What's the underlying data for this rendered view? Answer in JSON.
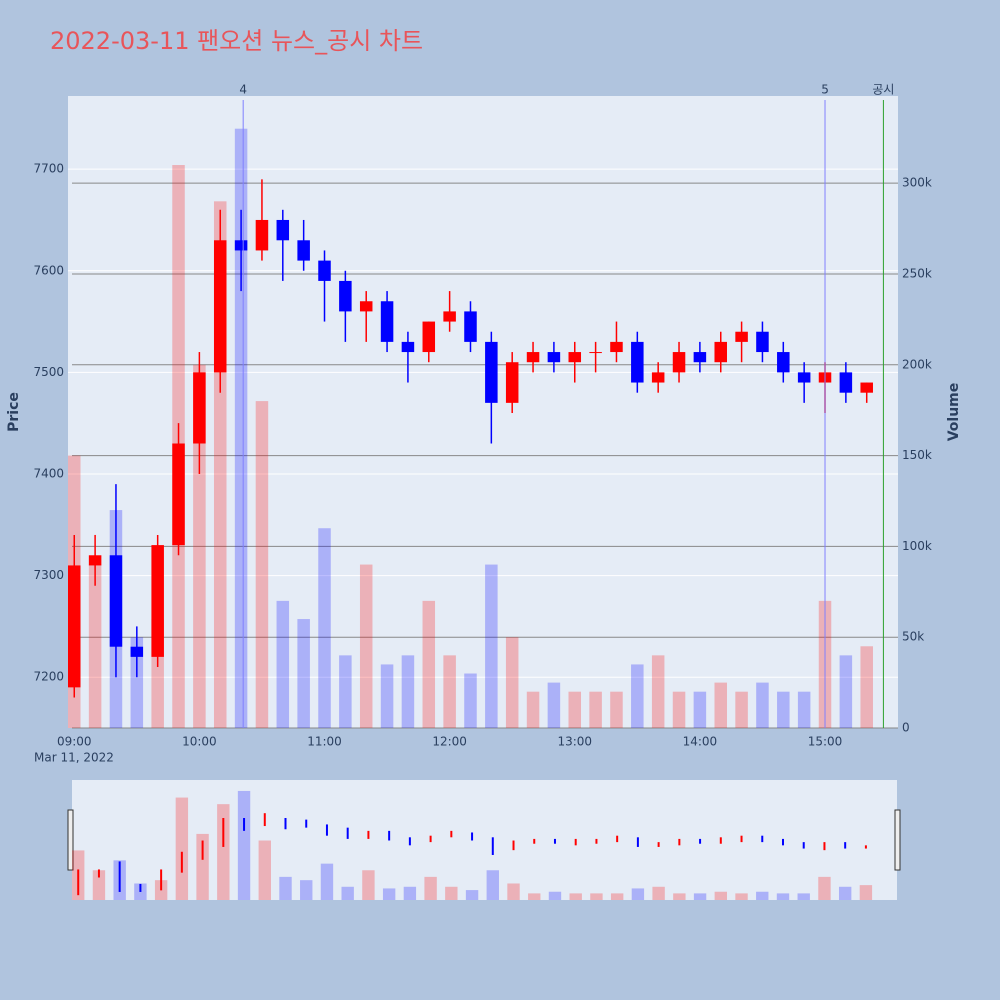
{
  "chart_data": {
    "type": "candlestick",
    "title": "2022-03-11 팬오션 뉴스_공시 차트",
    "y_label": "Price",
    "y2_label": "Volume",
    "x_date_label": "Mar 11, 2022",
    "x": [
      "09:00",
      "09:10",
      "09:20",
      "09:30",
      "09:40",
      "09:50",
      "10:00",
      "10:10",
      "10:20",
      "10:30",
      "10:40",
      "10:50",
      "11:00",
      "11:10",
      "11:20",
      "11:30",
      "11:40",
      "11:50",
      "12:00",
      "12:10",
      "12:20",
      "12:30",
      "12:40",
      "12:50",
      "13:00",
      "13:10",
      "13:20",
      "13:30",
      "13:40",
      "13:50",
      "14:00",
      "14:10",
      "14:20",
      "14:30",
      "14:40",
      "14:50",
      "15:00",
      "15:10",
      "15:20"
    ],
    "open": [
      7190,
      7310,
      7320,
      7230,
      7220,
      7330,
      7430,
      7500,
      7630,
      7620,
      7650,
      7630,
      7610,
      7590,
      7560,
      7570,
      7530,
      7520,
      7550,
      7560,
      7530,
      7470,
      7510,
      7520,
      7510,
      7520,
      7520,
      7530,
      7490,
      7500,
      7520,
      7510,
      7530,
      7540,
      7520,
      7500,
      7490,
      7500,
      7480
    ],
    "high": [
      7340,
      7340,
      7390,
      7250,
      7340,
      7450,
      7520,
      7660,
      7660,
      7690,
      7660,
      7650,
      7620,
      7600,
      7580,
      7580,
      7540,
      7550,
      7580,
      7570,
      7540,
      7520,
      7530,
      7530,
      7530,
      7530,
      7550,
      7540,
      7510,
      7530,
      7530,
      7540,
      7550,
      7550,
      7530,
      7510,
      7510,
      7510,
      7490
    ],
    "low": [
      7180,
      7290,
      7200,
      7200,
      7210,
      7320,
      7400,
      7480,
      7580,
      7610,
      7590,
      7600,
      7550,
      7530,
      7530,
      7520,
      7490,
      7510,
      7540,
      7520,
      7430,
      7460,
      7500,
      7500,
      7490,
      7500,
      7510,
      7480,
      7480,
      7490,
      7500,
      7500,
      7510,
      7510,
      7490,
      7470,
      7460,
      7470,
      7470
    ],
    "close": [
      7310,
      7320,
      7230,
      7220,
      7330,
      7430,
      7500,
      7630,
      7620,
      7650,
      7630,
      7610,
      7590,
      7560,
      7570,
      7530,
      7520,
      7550,
      7560,
      7530,
      7470,
      7510,
      7520,
      7510,
      7520,
      7520,
      7530,
      7490,
      7500,
      7520,
      7510,
      7530,
      7540,
      7520,
      7500,
      7490,
      7500,
      7480,
      7490
    ],
    "volume": [
      150000,
      90000,
      120000,
      50000,
      60000,
      310000,
      200000,
      290000,
      330000,
      180000,
      70000,
      60000,
      110000,
      40000,
      90000,
      35000,
      40000,
      70000,
      40000,
      30000,
      90000,
      50000,
      20000,
      25000,
      20000,
      20000,
      20000,
      35000,
      40000,
      20000,
      20000,
      25000,
      20000,
      25000,
      20000,
      20000,
      70000,
      40000,
      45000
    ],
    "up_color": "#ff0000",
    "down_color": "#0000ff",
    "xlim": [
      "08:57",
      "15:35"
    ],
    "xticks": [
      "09:00",
      "10:00",
      "11:00",
      "12:00",
      "13:00",
      "14:00",
      "15:00"
    ],
    "ylim": [
      7150,
      7772
    ],
    "yticks": [
      7200,
      7300,
      7400,
      7500,
      7600,
      7700
    ],
    "y2lim": [
      0,
      348000
    ],
    "y2ticks": [
      0,
      {
        "value": 50000,
        "label": "50k"
      },
      {
        "value": 100000,
        "label": "100k"
      },
      {
        "value": 150000,
        "label": "150k"
      },
      {
        "value": 200000,
        "label": "200k"
      },
      {
        "value": 250000,
        "label": "250k"
      },
      {
        "value": 300000,
        "label": "300k"
      }
    ],
    "events": [
      {
        "x": "10:21",
        "label": "4",
        "color": "#8080ff"
      },
      {
        "x": "15:00",
        "label": "5",
        "color": "#8080ff"
      },
      {
        "x": "15:28",
        "label": "공시",
        "color": "#2ca02c"
      }
    ]
  }
}
